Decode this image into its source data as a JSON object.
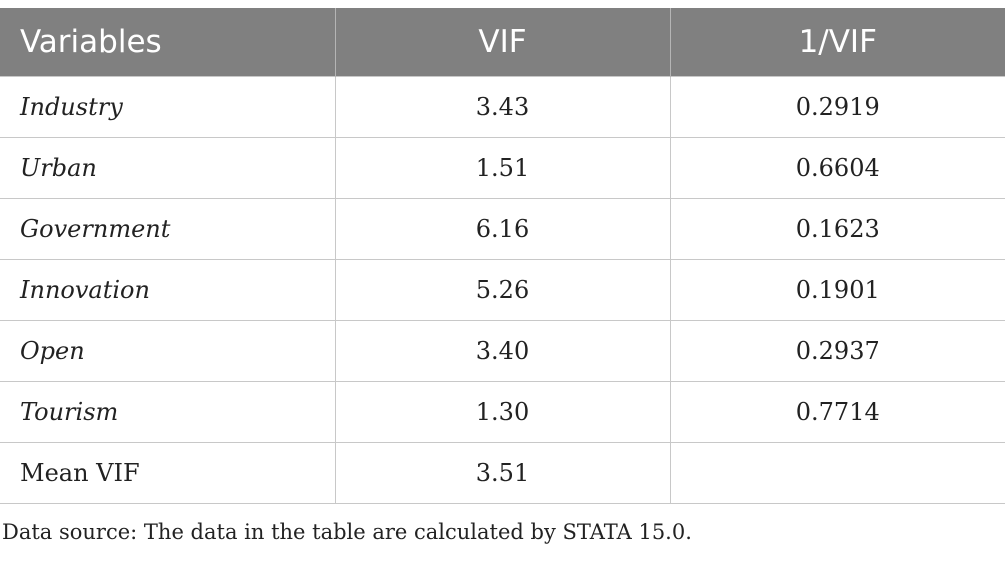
{
  "table": {
    "headers": [
      "Variables",
      "VIF",
      "1/VIF"
    ],
    "rows": [
      {
        "variable": "Industry",
        "vif": "3.43",
        "inv_vif": "0.2919"
      },
      {
        "variable": "Urban",
        "vif": "1.51",
        "inv_vif": "0.6604"
      },
      {
        "variable": "Government",
        "vif": "6.16",
        "inv_vif": "0.1623"
      },
      {
        "variable": "Innovation",
        "vif": "5.26",
        "inv_vif": "0.1901"
      },
      {
        "variable": "Open",
        "vif": "3.40",
        "inv_vif": "0.2937"
      },
      {
        "variable": "Tourism",
        "vif": "1.30",
        "inv_vif": "0.7714"
      }
    ],
    "mean_row": {
      "label": "Mean VIF",
      "vif": "3.51",
      "inv_vif": ""
    }
  },
  "note": "Data source: The data in the table are calculated by STATA 15.0.",
  "colors": {
    "header_bg": "#808080",
    "header_text": "#ffffff",
    "grid": "#c8c8c8"
  }
}
